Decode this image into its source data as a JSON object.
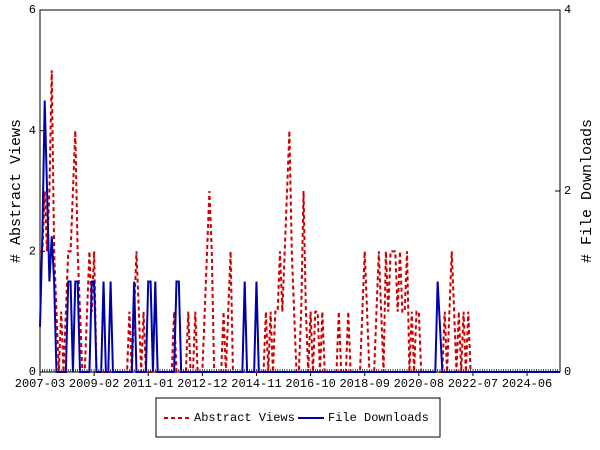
{
  "chart_data": {
    "type": "line",
    "y_label": "# Abstract Views",
    "y2_label": "# File Downloads",
    "x": [
      "2007-03",
      "2007-04",
      "2007-05",
      "2007-06",
      "2007-07",
      "2007-08",
      "2007-09",
      "2007-10",
      "2007-11",
      "2007-12",
      "2008-01",
      "2008-02",
      "2008-03",
      "2008-04",
      "2008-05",
      "2008-06",
      "2008-07",
      "2008-08",
      "2008-09",
      "2008-10",
      "2008-11",
      "2008-12",
      "2009-01",
      "2009-02",
      "2009-03",
      "2009-04",
      "2009-05",
      "2009-06",
      "2009-07",
      "2009-08",
      "2009-09",
      "2009-10",
      "2009-11",
      "2009-12",
      "2010-01",
      "2010-02",
      "2010-03",
      "2010-04",
      "2010-05",
      "2010-06",
      "2010-07",
      "2010-08",
      "2010-09",
      "2010-10",
      "2010-11",
      "2010-12",
      "2011-01",
      "2011-02",
      "2011-03",
      "2011-04",
      "2011-05",
      "2011-06",
      "2011-07",
      "2011-08",
      "2011-09",
      "2011-10",
      "2011-11",
      "2011-12",
      "2012-01",
      "2012-02",
      "2012-03",
      "2012-04",
      "2012-05",
      "2012-06",
      "2012-07",
      "2012-08",
      "2012-09",
      "2012-10",
      "2012-11",
      "2012-12",
      "2013-01",
      "2013-02",
      "2013-03",
      "2013-04",
      "2013-05",
      "2013-06",
      "2013-07",
      "2013-08",
      "2013-09",
      "2013-10",
      "2013-11",
      "2013-12",
      "2014-01",
      "2014-02",
      "2014-03",
      "2014-04",
      "2014-05",
      "2014-06",
      "2014-07",
      "2014-08",
      "2014-09",
      "2014-10",
      "2014-11",
      "2014-12",
      "2015-01",
      "2015-02",
      "2015-03",
      "2015-04",
      "2015-05",
      "2015-06",
      "2015-07",
      "2015-08",
      "2015-09",
      "2015-10",
      "2015-11",
      "2015-12",
      "2016-01",
      "2016-02",
      "2016-03",
      "2016-04",
      "2016-05",
      "2016-06",
      "2016-07",
      "2016-08",
      "2016-09",
      "2016-10",
      "2016-11",
      "2016-12",
      "2017-01",
      "2017-02",
      "2017-03",
      "2017-04",
      "2017-05",
      "2017-06",
      "2017-07",
      "2017-08",
      "2017-09",
      "2017-10",
      "2017-11",
      "2017-12",
      "2018-01",
      "2018-02",
      "2018-03",
      "2018-04",
      "2018-05",
      "2018-06",
      "2018-07",
      "2018-08",
      "2018-09",
      "2018-10",
      "2018-11",
      "2018-12",
      "2019-01",
      "2019-02",
      "2019-03",
      "2019-04",
      "2019-05",
      "2019-06",
      "2019-07",
      "2019-08",
      "2019-09",
      "2019-10",
      "2019-11",
      "2019-12",
      "2020-01",
      "2020-02",
      "2020-03",
      "2020-04",
      "2020-05",
      "2020-06",
      "2020-07",
      "2020-08",
      "2020-09",
      "2020-10",
      "2020-11",
      "2020-12",
      "2021-01",
      "2021-02",
      "2021-03",
      "2021-04",
      "2021-05",
      "2021-06",
      "2021-07",
      "2021-08",
      "2021-09",
      "2021-10",
      "2021-11",
      "2021-12",
      "2022-01",
      "2022-02",
      "2022-03",
      "2022-04",
      "2022-05",
      "2022-06",
      "2022-07",
      "2022-08",
      "2022-09",
      "2022-10",
      "2022-11",
      "2022-12",
      "2023-01",
      "2023-02",
      "2023-03",
      "2023-04",
      "2023-05",
      "2023-06",
      "2023-07",
      "2023-08",
      "2023-09",
      "2023-10",
      "2023-11",
      "2023-12",
      "2024-01",
      "2024-02",
      "2024-03",
      "2024-04",
      "2024-05",
      "2024-06",
      "2024-07",
      "2024-08",
      "2024-09",
      "2024-10",
      "2024-11",
      "2024-12",
      "2025-01",
      "2025-02",
      "2025-03",
      "2025-04",
      "2025-05",
      "2025-06",
      "2025-07",
      "2025-08"
    ],
    "xticks": [
      "2007-03",
      "2009-02",
      "2011-01",
      "2012-12",
      "2014-11",
      "2016-10",
      "2018-09",
      "2020-08",
      "2022-07",
      "2024-06"
    ],
    "ylim": [
      0,
      6
    ],
    "yticks": [
      0,
      2,
      4,
      6
    ],
    "y2lim": [
      0,
      4
    ],
    "y2ticks": [
      0,
      2,
      4
    ],
    "series": [
      {
        "name": "Abstract Views",
        "color": "#cc0000",
        "dashed": true,
        "values": [
          2,
          2,
          3,
          2,
          3,
          5,
          2,
          1,
          0,
          1,
          0,
          1,
          2,
          2,
          3,
          4,
          2,
          1,
          0,
          0,
          1,
          2,
          1,
          2,
          0,
          0,
          0,
          0,
          0,
          0,
          0,
          0,
          0,
          0,
          0,
          0,
          0,
          0,
          1,
          0,
          1,
          2,
          1,
          0,
          1,
          0,
          0,
          0,
          0,
          0,
          0,
          0,
          0,
          0,
          0,
          0,
          0,
          1,
          0,
          0,
          0,
          0,
          0,
          1,
          0,
          0,
          1,
          0,
          0,
          0,
          1,
          2,
          3,
          2,
          0,
          0,
          0,
          0,
          1,
          0,
          1,
          2,
          0,
          0,
          0,
          0,
          0,
          0,
          0,
          0,
          0,
          0,
          0,
          0,
          0,
          0,
          1,
          0,
          1,
          0,
          1,
          1,
          2,
          1,
          2,
          3,
          4,
          2,
          1,
          0,
          0,
          1,
          3,
          1,
          0,
          1,
          0,
          1,
          1,
          0,
          1,
          0,
          0,
          0,
          0,
          0,
          0,
          1,
          0,
          0,
          0,
          1,
          0,
          0,
          0,
          0,
          0,
          1,
          2,
          1,
          0,
          0,
          0,
          1,
          2,
          1,
          0,
          2,
          1,
          2,
          2,
          2,
          1,
          2,
          1,
          1,
          2,
          0,
          1,
          0,
          1,
          1,
          0,
          0,
          0,
          0,
          0,
          0,
          0,
          0,
          0,
          0,
          1,
          0,
          1,
          2,
          1,
          0,
          1,
          0,
          1,
          0,
          1,
          0,
          0,
          0,
          0,
          0,
          0,
          0,
          0,
          0,
          0,
          0,
          0,
          0,
          0,
          0,
          0,
          0,
          0,
          0,
          0,
          0,
          0,
          0,
          0,
          0,
          0,
          0,
          0,
          0,
          0,
          0,
          0,
          0,
          0,
          0,
          0,
          0,
          0,
          0
        ]
      },
      {
        "name": "File Downloads",
        "color": "#0000aa",
        "axis": "y2",
        "values": [
          0.5,
          1.5,
          3,
          2,
          1,
          1.5,
          1,
          0,
          0,
          0,
          0,
          0,
          1,
          1,
          0,
          1,
          1,
          0,
          0,
          0,
          0,
          0,
          1,
          1,
          0,
          0,
          0,
          1,
          0,
          0,
          1,
          0,
          0,
          0,
          0,
          0,
          0,
          0,
          0,
          0,
          1,
          0,
          0,
          0,
          0,
          0,
          1,
          1,
          0,
          1,
          0,
          0,
          0,
          0,
          0,
          0,
          0,
          0,
          1,
          1,
          0,
          0,
          0,
          0,
          0,
          0,
          0,
          0,
          0,
          0,
          0,
          0,
          0,
          0,
          0,
          0,
          0,
          0,
          0,
          0,
          0,
          0,
          0,
          0,
          0,
          0,
          0,
          1,
          0,
          0,
          0,
          0,
          1,
          0,
          0,
          0,
          0,
          0,
          0,
          0,
          0,
          0,
          0,
          0,
          0,
          0,
          0,
          0,
          0,
          0,
          0,
          0,
          0,
          0,
          0,
          0,
          0,
          0,
          0,
          0,
          0,
          0,
          0,
          0,
          0,
          0,
          0,
          0,
          0,
          0,
          0,
          0,
          0,
          0,
          0,
          0,
          0,
          0,
          0,
          0,
          0,
          0,
          0,
          0,
          0,
          0,
          0,
          0,
          0,
          0,
          0,
          0,
          0,
          0,
          0,
          0,
          0,
          0,
          0,
          0,
          0,
          0,
          0,
          0,
          0,
          0,
          0,
          0,
          0,
          1,
          0.5,
          0,
          0,
          0,
          0,
          0,
          0,
          0,
          0,
          0,
          0,
          0,
          0,
          0,
          0,
          0,
          0,
          0,
          0,
          0,
          0,
          0,
          0,
          0,
          0,
          0,
          0,
          0,
          0,
          0,
          0,
          0,
          0,
          0,
          0,
          0,
          0,
          0,
          0,
          0,
          0,
          0,
          0,
          0,
          0,
          0,
          0,
          0,
          0,
          0,
          0,
          0
        ]
      }
    ]
  }
}
